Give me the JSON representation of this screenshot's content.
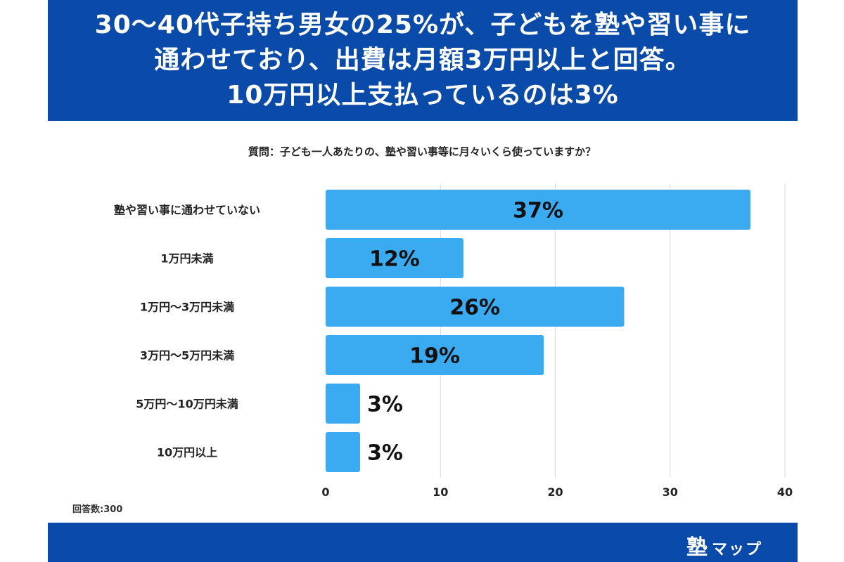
{
  "header": {
    "lines": [
      "30〜40代子持ち男女の25%が、子どもを塾や習い事に",
      "通わせており、出費は月額3万円以上と回答。",
      "10万円以上支払っているのは3%"
    ]
  },
  "question": "質問：子ども一人あたりの、塾や習い事等に月々いくら使っていますか？",
  "footer_note": "回答数:300",
  "brand": {
    "kanji": "塾",
    "kana": "マップ"
  },
  "colors": {
    "header_bg": "#0a4aa8",
    "bar": "#3aabf0",
    "grid": "#d9d9d9"
  },
  "chart_data": {
    "type": "bar",
    "orientation": "horizontal",
    "categories": [
      "塾や習い事に通わせていない",
      "1万円未満",
      "1万円〜3万円未満",
      "3万円〜5万円未満",
      "5万円〜10万円未満",
      "10万円以上"
    ],
    "values": [
      37,
      12,
      26,
      19,
      3,
      3
    ],
    "data_labels": [
      "37%",
      "12%",
      "26%",
      "19%",
      "3%",
      "3%"
    ],
    "xlim": [
      0,
      40
    ],
    "xticks": [
      0,
      10,
      20,
      30,
      40
    ],
    "grid": true
  }
}
